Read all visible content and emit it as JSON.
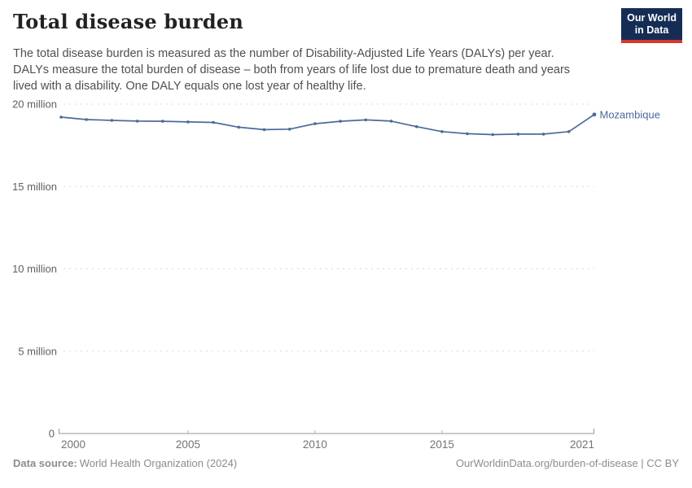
{
  "header": {
    "title": "Total disease burden",
    "subtitle_lines": [
      "The total disease burden is measured as the number of Disability-Adjusted Life Years (DALYs) per year.",
      "DALYs measure the total burden of disease – both from years of life lost due to premature death and years",
      "lived with a disability. One DALY equals one lost year of healthy life."
    ]
  },
  "logo": {
    "line1": "Our World",
    "line2": "in Data",
    "bg_color": "#152d55",
    "accent_color": "#d7382d"
  },
  "chart_data": {
    "type": "line",
    "title": "Total disease burden",
    "xlabel": "",
    "ylabel": "",
    "xlim": [
      2000,
      2021
    ],
    "ylim": [
      0,
      20000000
    ],
    "grid": "horizontal-dashed",
    "legend_position": "end-of-line-label",
    "x_ticks": [
      2000,
      2005,
      2010,
      2015,
      2021
    ],
    "y_ticks": [
      {
        "value": 0,
        "label": "0"
      },
      {
        "value": 5000000,
        "label": "5 million"
      },
      {
        "value": 10000000,
        "label": "10 million"
      },
      {
        "value": 15000000,
        "label": "15 million"
      },
      {
        "value": 20000000,
        "label": "20 million"
      }
    ],
    "series": [
      {
        "name": "Mozambique",
        "color": "#4c6a9c",
        "x": [
          2000,
          2001,
          2002,
          2003,
          2004,
          2005,
          2006,
          2007,
          2008,
          2009,
          2010,
          2011,
          2012,
          2013,
          2014,
          2015,
          2016,
          2017,
          2018,
          2019,
          2020,
          2021
        ],
        "values": [
          19210000,
          19060000,
          19010000,
          18970000,
          18960000,
          18920000,
          18890000,
          18600000,
          18450000,
          18480000,
          18810000,
          18960000,
          19040000,
          18970000,
          18630000,
          18330000,
          18200000,
          18150000,
          18180000,
          18180000,
          18330000,
          19370000
        ]
      }
    ]
  },
  "footer": {
    "datasource_label": "Data source:",
    "datasource_value": "World Health Organization (2024)",
    "attribution": "OurWorldinData.org/burden-of-disease | CC BY"
  }
}
